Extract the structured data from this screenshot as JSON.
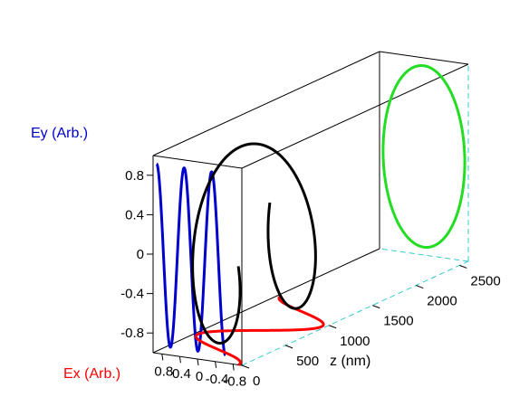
{
  "chart_data": {
    "type": "line",
    "projection": "3d",
    "title": "",
    "axes": {
      "x": {
        "label": "Ex (Arb.)",
        "range": [
          -1,
          1
        ],
        "ticks": [
          "-0.8",
          "-0.4",
          "0",
          "0.4",
          "0.8"
        ],
        "color": "#ff0000"
      },
      "y": {
        "label": "Ey (Arb.)",
        "range": [
          -1,
          1
        ],
        "ticks": [
          "0.8",
          "0.4",
          "0",
          "-0.4",
          "-0.8"
        ],
        "color": "#0000cc"
      },
      "z": {
        "label": "z (nm)",
        "range": [
          0,
          2600
        ],
        "ticks": [
          "0",
          "500",
          "1000",
          "1500",
          "2000",
          "2500"
        ],
        "color": "#000000"
      }
    },
    "grid": false,
    "series": [
      {
        "kind": "Ey projection on back wall",
        "color": "#0000cc",
        "amplitude": 0.92,
        "periods_over_z": 3
      },
      {
        "kind": "Ex projection on floor",
        "color": "#ff0000",
        "amplitude": 0.92,
        "periods_over_z": 3
      },
      {
        "kind": "3D helical polarization ellipse",
        "color": "#000000",
        "amplitude_x": 0.92,
        "amplitude_y": 0.92,
        "periods_over_z": 3
      },
      {
        "kind": "polarization ellipse end-face projection",
        "color": "#22dd22",
        "amplitude_x": 0.92,
        "amplitude_y": 0.92
      }
    ]
  }
}
